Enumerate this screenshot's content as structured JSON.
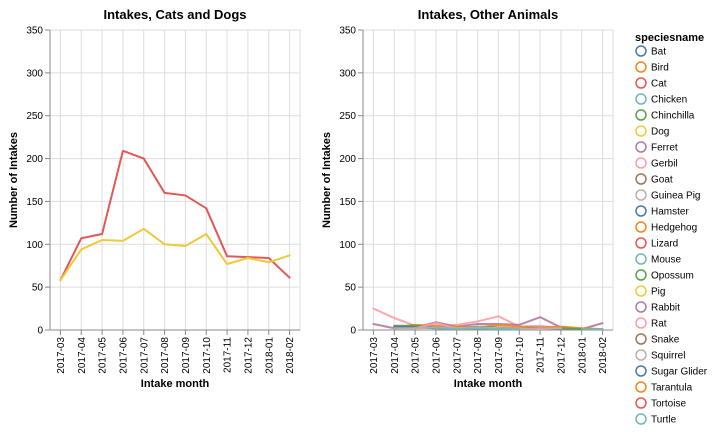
{
  "chart_data": [
    {
      "type": "line",
      "title": "Intakes, Cats and Dogs",
      "xlabel": "Intake month",
      "ylabel": "Number of Intakes",
      "ylim": [
        0,
        350
      ],
      "yticks": [
        "0",
        "50",
        "100",
        "150",
        "200",
        "250",
        "300",
        "350"
      ],
      "grid": true,
      "x": [
        "2017-03",
        "2017-04",
        "2017-05",
        "2017-06",
        "2017-07",
        "2017-08",
        "2017-09",
        "2017-10",
        "2017-11",
        "2017-12",
        "2018-01",
        "2018-02"
      ],
      "series": [
        {
          "name": "Cat",
          "color": "#e45756",
          "values": [
            58,
            107,
            112,
            209,
            200,
            160,
            157,
            142,
            86,
            85,
            84,
            61
          ]
        },
        {
          "name": "Dog",
          "color": "#eeca3b",
          "values": [
            58,
            94,
            105,
            104,
            118,
            100,
            98,
            112,
            77,
            84,
            79,
            87
          ]
        }
      ]
    },
    {
      "type": "line",
      "title": "Intakes, Other Animals",
      "xlabel": "Intake month",
      "ylabel": "Number of Intakes",
      "ylim": [
        0,
        350
      ],
      "yticks": [
        "0",
        "50",
        "100",
        "150",
        "200",
        "250",
        "300",
        "350"
      ],
      "grid": true,
      "x": [
        "2017-03",
        "2017-04",
        "2017-05",
        "2017-06",
        "2017-07",
        "2017-08",
        "2017-09",
        "2017-10",
        "2017-11",
        "2017-12",
        "2018-01",
        "2018-02"
      ],
      "series": [
        {
          "name": "Rat",
          "color": "#ff9da6",
          "values": [
            25,
            14,
            5,
            4,
            6,
            10,
            16,
            4,
            5,
            2,
            1,
            null
          ]
        },
        {
          "name": "Rabbit",
          "color": "#b279a2",
          "values": [
            7,
            2,
            3,
            9,
            4,
            7,
            7,
            6,
            15,
            3,
            1,
            8
          ]
        },
        {
          "name": "Bird",
          "color": "#f58518",
          "values": [
            null,
            3,
            6,
            5,
            4,
            3,
            6,
            4,
            3,
            4,
            2,
            1
          ]
        },
        {
          "name": "Chinchilla",
          "color": "#54a24b",
          "values": [
            null,
            5,
            5,
            3,
            2,
            4,
            3,
            2,
            2,
            2,
            1,
            null
          ]
        },
        {
          "name": "Bat",
          "color": "#4c78a8",
          "values": [
            null,
            4,
            3,
            2,
            2,
            2,
            2,
            2,
            2,
            1,
            null,
            null
          ]
        },
        {
          "name": "Gerbil",
          "color": "#ff9da6",
          "values": [
            null,
            null,
            2,
            8,
            2,
            3,
            2,
            2,
            1,
            2,
            null,
            null
          ]
        },
        {
          "name": "Guinea Pig",
          "color": "#bab0ac",
          "values": [
            null,
            2,
            2,
            3,
            2,
            2,
            2,
            1,
            2,
            2,
            null,
            null
          ]
        },
        {
          "name": "Chicken",
          "color": "#72b7b2",
          "values": [
            null,
            null,
            null,
            2,
            1,
            2,
            1,
            1,
            null,
            null,
            1,
            1
          ]
        }
      ]
    }
  ],
  "legend": {
    "title": "speciesname",
    "items": [
      {
        "label": "Bat",
        "color": "#4c78a8"
      },
      {
        "label": "Bird",
        "color": "#f58518"
      },
      {
        "label": "Cat",
        "color": "#e45756"
      },
      {
        "label": "Chicken",
        "color": "#72b7b2"
      },
      {
        "label": "Chinchilla",
        "color": "#54a24b"
      },
      {
        "label": "Dog",
        "color": "#eeca3b"
      },
      {
        "label": "Ferret",
        "color": "#b279a2"
      },
      {
        "label": "Gerbil",
        "color": "#ff9da6"
      },
      {
        "label": "Goat",
        "color": "#9d755d"
      },
      {
        "label": "Guinea Pig",
        "color": "#bab0ac"
      },
      {
        "label": "Hamster",
        "color": "#4c78a8"
      },
      {
        "label": "Hedgehog",
        "color": "#f58518"
      },
      {
        "label": "Lizard",
        "color": "#e45756"
      },
      {
        "label": "Mouse",
        "color": "#72b7b2"
      },
      {
        "label": "Opossum",
        "color": "#54a24b"
      },
      {
        "label": "Pig",
        "color": "#eeca3b"
      },
      {
        "label": "Rabbit",
        "color": "#b279a2"
      },
      {
        "label": "Rat",
        "color": "#ff9da6"
      },
      {
        "label": "Snake",
        "color": "#9d755d"
      },
      {
        "label": "Squirrel",
        "color": "#bab0ac"
      },
      {
        "label": "Sugar Glider",
        "color": "#4c78a8"
      },
      {
        "label": "Tarantula",
        "color": "#f58518"
      },
      {
        "label": "Tortoise",
        "color": "#e45756"
      },
      {
        "label": "Turtle",
        "color": "#72b7b2"
      }
    ]
  }
}
